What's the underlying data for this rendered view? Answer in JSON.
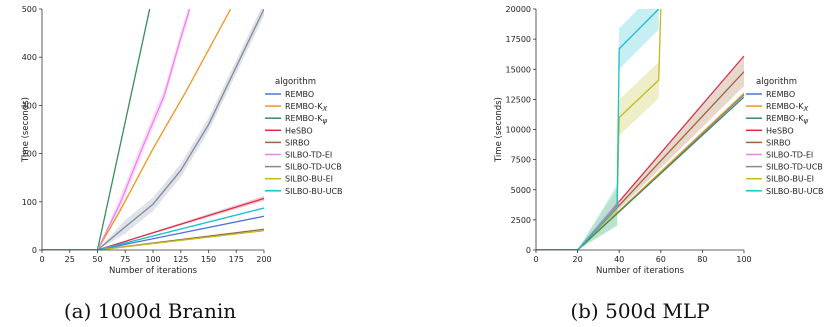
{
  "chart_data": [
    {
      "type": "line",
      "caption": "(a) 1000d Branin",
      "xlabel": "Number of iterations",
      "ylabel": "Time (seconds)",
      "xlim": [
        0,
        200
      ],
      "ylim": [
        0,
        500
      ],
      "xticks": [
        0,
        25,
        50,
        75,
        100,
        125,
        150,
        175,
        200
      ],
      "yticks": [
        0,
        100,
        200,
        300,
        400,
        500
      ],
      "legend_title": "algorithm",
      "legend_position": "right",
      "series": [
        {
          "name": "REMBO",
          "color": "#4c72d6",
          "x": [
            0,
            50,
            200
          ],
          "y": [
            0,
            0,
            70
          ]
        },
        {
          "name": "REMBO-K_X",
          "color": "#f5931e",
          "x": [
            0,
            50,
            70,
            100,
            130,
            170
          ],
          "y": [
            0,
            0,
            80,
            210,
            330,
            500
          ]
        },
        {
          "name": "REMBO-K_ψ",
          "color": "#3a8d5c",
          "x": [
            0,
            50,
            97
          ],
          "y": [
            0,
            0,
            500
          ]
        },
        {
          "name": "HeSBO",
          "color": "#d9304a",
          "x": [
            0,
            50,
            200
          ],
          "y": [
            0,
            0,
            107
          ],
          "band": 5
        },
        {
          "name": "SIRBO",
          "color": "#a0633c",
          "x": [
            0,
            50,
            200
          ],
          "y": [
            0,
            0,
            43
          ]
        },
        {
          "name": "SILBO-TD-EI",
          "color": "#ee82ee",
          "x": [
            0,
            50,
            70,
            90,
            110,
            125,
            133
          ],
          "y": [
            0,
            0,
            95,
            210,
            320,
            440,
            500
          ],
          "band": 14
        },
        {
          "name": "SILBO-TD-UCB",
          "color": "#7f8aa0",
          "x": [
            0,
            50,
            75,
            100,
            125,
            150,
            175,
            200
          ],
          "y": [
            0,
            0,
            48,
            95,
            165,
            260,
            380,
            500
          ],
          "band": 14
        },
        {
          "name": "SILBO-BU-EI",
          "color": "#bcbd22",
          "x": [
            0,
            50,
            200
          ],
          "y": [
            0,
            0,
            40
          ]
        },
        {
          "name": "SILBO-BU-UCB",
          "color": "#17becf",
          "x": [
            0,
            50,
            200
          ],
          "y": [
            0,
            0,
            87
          ]
        }
      ]
    },
    {
      "type": "line",
      "caption": "(b) 500d MLP",
      "xlabel": "Number of iterations",
      "ylabel": "Time (seconds)",
      "xlim": [
        0,
        100
      ],
      "ylim": [
        0,
        20000
      ],
      "xticks": [
        0,
        20,
        40,
        60,
        80,
        100
      ],
      "yticks": [
        0,
        2500,
        5000,
        7500,
        10000,
        12500,
        15000,
        17500,
        20000
      ],
      "legend_title": "algorithm",
      "legend_position": "right",
      "series": [
        {
          "name": "REMBO",
          "color": "#4c72d6",
          "x": [
            0,
            20,
            100
          ],
          "y": [
            0,
            0,
            12900
          ]
        },
        {
          "name": "REMBO-K_X",
          "color": "#f5931e",
          "x": [
            0,
            20,
            100
          ],
          "y": [
            0,
            0,
            13000
          ]
        },
        {
          "name": "REMBO-K_ψ",
          "color": "#3a8d5c",
          "x": [
            0,
            20,
            100
          ],
          "y": [
            0,
            0,
            12700
          ]
        },
        {
          "name": "HeSBO",
          "color": "#d9304a",
          "x": [
            0,
            20,
            100
          ],
          "y": [
            0,
            0,
            16100
          ]
        },
        {
          "name": "SIRBO",
          "color": "#a0633c",
          "x": [
            0,
            20,
            100
          ],
          "y": [
            0,
            0,
            14800
          ],
          "band": 1200
        },
        {
          "name": "SILBO-TD-EI",
          "color": "#ee82ee",
          "x": [
            0,
            20,
            40
          ],
          "y": [
            0,
            0,
            4100
          ]
        },
        {
          "name": "SILBO-TD-UCB",
          "color": "#7f8aa0",
          "x": [
            0,
            20,
            40
          ],
          "y": [
            0,
            0,
            3800
          ]
        },
        {
          "name": "SILBO-BU-EI",
          "color": "#bcbd22",
          "x": [
            0,
            20,
            39,
            40,
            59,
            60
          ],
          "y": [
            0,
            0,
            3600,
            11000,
            14100,
            20000
          ],
          "band": 1500
        },
        {
          "name": "SILBO-BU-UCB",
          "color": "#17becf",
          "x": [
            0,
            20,
            39,
            40,
            59
          ],
          "y": [
            0,
            0,
            3700,
            16700,
            20000
          ],
          "band": 1700
        }
      ]
    }
  ]
}
